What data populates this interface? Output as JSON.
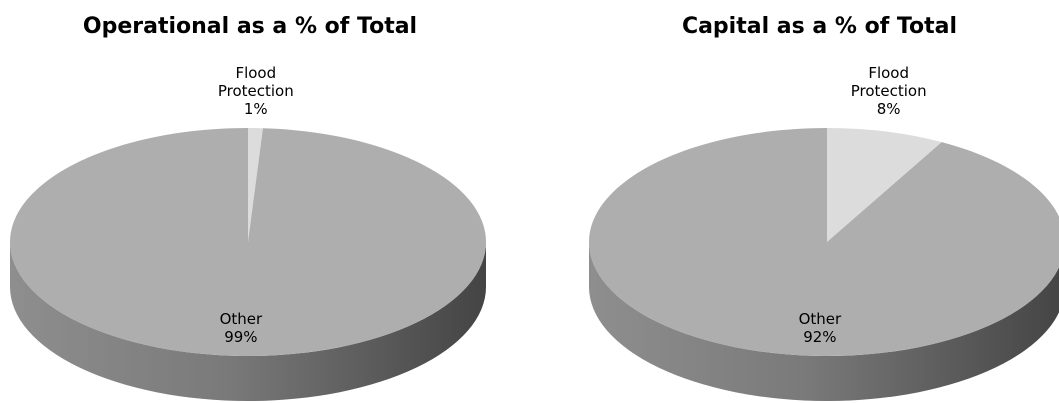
{
  "chart_data": [
    {
      "type": "pie",
      "title": "Operational as a % of Total",
      "slices": [
        {
          "label": "Flood Protection",
          "value": 1,
          "value_label": "1%",
          "color": "#dcdcdc"
        },
        {
          "label": "Other",
          "value": 99,
          "value_label": "99%",
          "color": "#aeaeae"
        }
      ]
    },
    {
      "type": "pie",
      "title": "Capital as a % of Total",
      "slices": [
        {
          "label": "Flood Protection",
          "value": 8,
          "value_label": "8%",
          "color": "#dcdcdc"
        },
        {
          "label": "Other",
          "value": 92,
          "value_label": "92%",
          "color": "#aeaeae"
        }
      ]
    }
  ]
}
